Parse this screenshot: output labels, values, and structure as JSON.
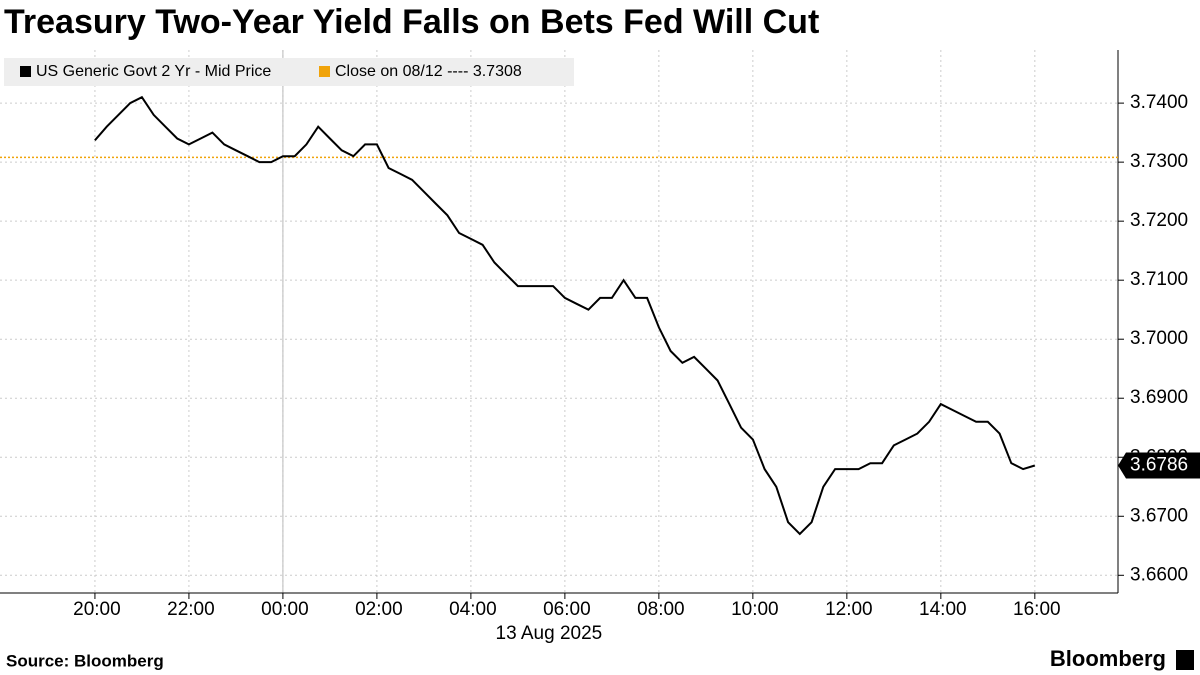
{
  "chart_data": {
    "type": "line",
    "title": "Treasury Two-Year Yield Falls on Bets Fed Will Cut",
    "x_label": "13 Aug 2025",
    "source": "Source: Bloomberg",
    "brand": "Bloomberg",
    "x": [
      0,
      0.25,
      0.5,
      0.75,
      1,
      1.25,
      1.5,
      1.75,
      2,
      2.25,
      2.5,
      2.75,
      3,
      3.25,
      3.5,
      3.75,
      4,
      4.25,
      4.5,
      4.75,
      5,
      5.25,
      5.5,
      5.75,
      6,
      6.25,
      6.5,
      6.75,
      7,
      7.25,
      7.5,
      7.75,
      8,
      8.25,
      8.5,
      8.75,
      9,
      9.25,
      9.5,
      9.75,
      10,
      10.25,
      10.5,
      10.75,
      11,
      11.25,
      11.5,
      11.75,
      12,
      12.25,
      12.5,
      12.75,
      13,
      13.25,
      13.5,
      13.75,
      14,
      14.25,
      14.5,
      14.75,
      15,
      15.25,
      15.5,
      15.75,
      16,
      16.25,
      16.5,
      16.75,
      17,
      17.25,
      17.5,
      17.75,
      18,
      18.25,
      18.5,
      18.75,
      19,
      19.25,
      19.5,
      19.75,
      20
    ],
    "series": [
      {
        "name": "US Generic Govt 2 Yr - Mid Price",
        "color": "#000000",
        "values": [
          3.7337,
          3.736,
          3.738,
          3.74,
          3.741,
          3.738,
          3.736,
          3.734,
          3.733,
          3.734,
          3.735,
          3.733,
          3.732,
          3.731,
          3.73,
          3.73,
          3.731,
          3.731,
          3.733,
          3.736,
          3.734,
          3.732,
          3.731,
          3.733,
          3.733,
          3.729,
          3.728,
          3.727,
          3.725,
          3.723,
          3.721,
          3.718,
          3.717,
          3.716,
          3.713,
          3.711,
          3.709,
          3.709,
          3.709,
          3.709,
          3.707,
          3.706,
          3.705,
          3.707,
          3.707,
          3.71,
          3.707,
          3.707,
          3.702,
          3.698,
          3.696,
          3.697,
          3.695,
          3.693,
          3.689,
          3.685,
          3.683,
          3.678,
          3.675,
          3.669,
          3.667,
          3.669,
          3.675,
          3.678,
          3.678,
          3.678,
          3.679,
          3.679,
          3.682,
          3.683,
          3.684,
          3.686,
          3.689,
          3.688,
          3.687,
          3.686,
          3.686,
          3.684,
          3.679,
          3.678,
          3.6786
        ]
      }
    ],
    "reference_line": {
      "label": "Close on 08/12 ---- 3.7308",
      "value": 3.7308,
      "color": "#f0a30a"
    },
    "xlim": [
      -2.02,
      21.77
    ],
    "xticks": [
      {
        "value": 0,
        "label": "20:00"
      },
      {
        "value": 2,
        "label": "22:00"
      },
      {
        "value": 4,
        "label": "00:00"
      },
      {
        "value": 6,
        "label": "02:00"
      },
      {
        "value": 8,
        "label": "04:00"
      },
      {
        "value": 10,
        "label": "06:00"
      },
      {
        "value": 12,
        "label": "08:00"
      },
      {
        "value": 14,
        "label": "10:00"
      },
      {
        "value": 16,
        "label": "12:00"
      },
      {
        "value": 18,
        "label": "14:00"
      },
      {
        "value": 20,
        "label": "16:00"
      }
    ],
    "ylim": [
      3.657,
      3.749
    ],
    "yticks": [
      {
        "value": 3.66,
        "label": "3.6600"
      },
      {
        "value": 3.67,
        "label": "3.6700"
      },
      {
        "value": 3.68,
        "label": "3.6800"
      },
      {
        "value": 3.69,
        "label": "3.6900"
      },
      {
        "value": 3.7,
        "label": "3.7000"
      },
      {
        "value": 3.71,
        "label": "3.7100"
      },
      {
        "value": 3.72,
        "label": "3.7200"
      },
      {
        "value": 3.73,
        "label": "3.7300"
      },
      {
        "value": 3.74,
        "label": "3.7400"
      }
    ],
    "grid": true
  }
}
